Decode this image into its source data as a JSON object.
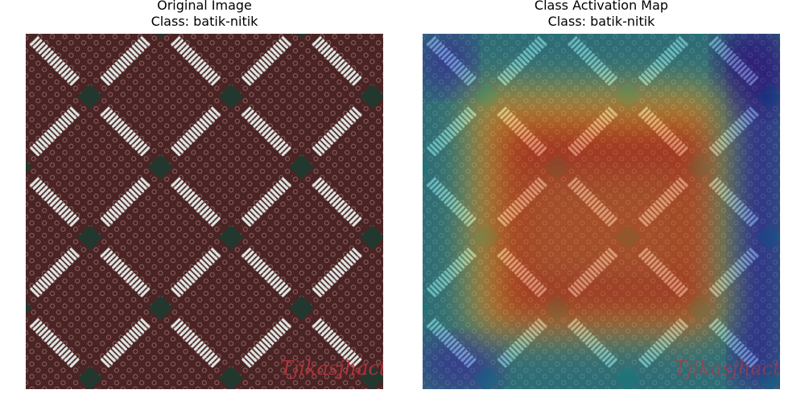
{
  "figure": {
    "left_panel": {
      "title": "Original Image",
      "class_label": "Class: batik-nitik",
      "watermark": "Tjikasjhacto"
    },
    "right_panel": {
      "title": "Class Activation Map",
      "class_label": "Class: batik-nitik",
      "watermark": "Tjikasjhacto"
    }
  },
  "colors": {
    "fabric_background": "#4a2424",
    "stripe": "#dfe6e3",
    "knot": "#22382f",
    "watermark": "#c0343e"
  }
}
